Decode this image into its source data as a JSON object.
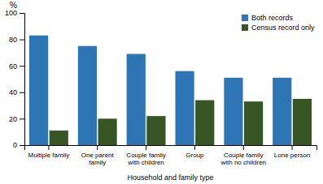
{
  "chart_data": {
    "type": "bar",
    "categories": [
      "Multiple family",
      "One parent\nfamily",
      "Couple family\nwith children",
      "Group",
      "Couple family\nwith no children",
      "Lone person"
    ],
    "series": [
      {
        "name": "Both records",
        "color": "#2e75b6",
        "values": [
          83,
          75,
          69,
          56,
          51,
          51
        ]
      },
      {
        "name": "Census record only",
        "color": "#375623",
        "values": [
          11,
          20,
          22,
          34,
          33,
          35
        ]
      }
    ],
    "x_label": "Household and family type",
    "y_label": "%",
    "ylim": [
      0,
      100
    ],
    "yticks": [
      0,
      20,
      40,
      60,
      80,
      100
    ],
    "grid": false,
    "legend": "upper right"
  }
}
